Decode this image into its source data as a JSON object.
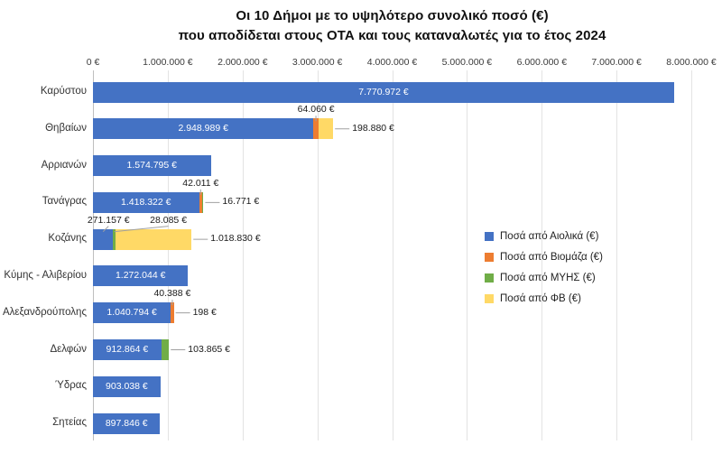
{
  "title": {
    "line1": "Οι 10 Δήμοι με το υψηλότερο συνολικό ποσό (€)",
    "line2": "που αποδίδεται στους ΟΤΑ και τους καταναλωτές για το έτος 2024"
  },
  "chart_data": {
    "type": "bar",
    "orientation": "horizontal",
    "stacked": true,
    "grid": true,
    "legend_position": "middle-right",
    "title": "Οι 10 Δήμοι με το υψηλότερο συνολικό ποσό (€) που αποδίδεται στους ΟΤΑ και τους καταναλωτές για το έτος 2024",
    "x_axis": {
      "min": 0,
      "max": 8000000,
      "step": 1000000,
      "tick_labels": [
        "0 €",
        "1.000.000 €",
        "2.000.000 €",
        "3.000.000 €",
        "4.000.000 €",
        "5.000.000 €",
        "6.000.000 €",
        "7.000.000 €",
        "8.000.000 €"
      ]
    },
    "categories": [
      "Καρύστου",
      "Θηβαίων",
      "Αρριανών",
      "Τανάγρας",
      "Κοζάνης",
      "Κύμης - Αλιβερίου",
      "Αλεξανδρούπολης",
      "Δελφών",
      "Ύδρας",
      "Σητείας"
    ],
    "series": [
      {
        "key": "wind",
        "name": "Ποσά από Αιολικά (€)",
        "color": "#4472C4",
        "values": [
          7770972,
          2948989,
          1574795,
          1418322,
          271157,
          1272044,
          1040794,
          912864,
          903038,
          897846
        ]
      },
      {
        "key": "biomass",
        "name": "Ποσά από Βιομάζα (€)",
        "color": "#ED7D31",
        "values": [
          0,
          64060,
          0,
          42011,
          0,
          0,
          40388,
          0,
          0,
          0
        ]
      },
      {
        "key": "hydro",
        "name": "Ποσά από ΜΥΗΣ (€)",
        "color": "#70AD47",
        "values": [
          0,
          0,
          0,
          16771,
          28085,
          0,
          0,
          103865,
          0,
          0
        ]
      },
      {
        "key": "pv",
        "name": "Ποσά από ΦΒ (€)",
        "color": "#FFD966",
        "values": [
          0,
          198880,
          0,
          0,
          1018830,
          0,
          198,
          0,
          0,
          0
        ]
      }
    ],
    "rows": [
      {
        "category": "Καρύστου",
        "segments": [
          {
            "series": "wind",
            "value": 7770972,
            "label": "7.770.972 €",
            "label_pos": "inside"
          }
        ]
      },
      {
        "category": "Θηβαίων",
        "segments": [
          {
            "series": "wind",
            "value": 2948989,
            "label": "2.948.989 €",
            "label_pos": "inside"
          },
          {
            "series": "biomass",
            "value": 64060,
            "label": "64.060 €",
            "label_pos": "above",
            "offset_x": 0
          },
          {
            "series": "pv",
            "value": 198880,
            "label": "198.880 €",
            "label_pos": "right"
          }
        ]
      },
      {
        "category": "Αρριανών",
        "segments": [
          {
            "series": "wind",
            "value": 1574795,
            "label": "1.574.795 €",
            "label_pos": "inside"
          }
        ]
      },
      {
        "category": "Τανάγρας",
        "segments": [
          {
            "series": "wind",
            "value": 1418322,
            "label": "1.418.322 €",
            "label_pos": "inside"
          },
          {
            "series": "biomass",
            "value": 42011,
            "label": "42.011 €",
            "label_pos": "above",
            "offset_x": 0
          },
          {
            "series": "hydro",
            "value": 16771,
            "label": "16.771 €",
            "label_pos": "right"
          }
        ]
      },
      {
        "category": "Κοζάνης",
        "segments": [
          {
            "series": "wind",
            "value": 271157,
            "label": "271.157 €",
            "label_pos": "above",
            "offset_x": 6
          },
          {
            "series": "hydro",
            "value": 28085,
            "label": "28.085 €",
            "label_pos": "above",
            "offset_x": 60
          },
          {
            "series": "pv",
            "value": 1018830,
            "label": "1.018.830 €",
            "label_pos": "right"
          }
        ]
      },
      {
        "category": "Κύμης - Αλιβερίου",
        "segments": [
          {
            "series": "wind",
            "value": 1272044,
            "label": "1.272.044 €",
            "label_pos": "inside"
          }
        ]
      },
      {
        "category": "Αλεξανδρούπολης",
        "segments": [
          {
            "series": "wind",
            "value": 1040794,
            "label": "1.040.794 €",
            "label_pos": "inside"
          },
          {
            "series": "biomass",
            "value": 40388,
            "label": "40.388 €",
            "label_pos": "above",
            "offset_x": 0
          },
          {
            "series": "pv",
            "value": 198,
            "label": "198 €",
            "label_pos": "right"
          }
        ]
      },
      {
        "category": "Δελφών",
        "segments": [
          {
            "series": "wind",
            "value": 912864,
            "label": "912.864 €",
            "label_pos": "inside"
          },
          {
            "series": "hydro",
            "value": 103865,
            "label": "103.865 €",
            "label_pos": "right"
          }
        ]
      },
      {
        "category": "Ύδρας",
        "segments": [
          {
            "series": "wind",
            "value": 903038,
            "label": "903.038 €",
            "label_pos": "inside"
          }
        ]
      },
      {
        "category": "Σητείας",
        "segments": [
          {
            "series": "wind",
            "value": 897846,
            "label": "897.846 €",
            "label_pos": "inside"
          }
        ]
      }
    ]
  },
  "colors": {
    "wind": "#4472C4",
    "biomass": "#ED7D31",
    "hydro": "#70AD47",
    "pv": "#FFD966",
    "gridline": "#e3e3e3",
    "axis_line": "#bfbfbf",
    "leader_line": "#a0a0a0",
    "inside_label": "#ffffff"
  }
}
